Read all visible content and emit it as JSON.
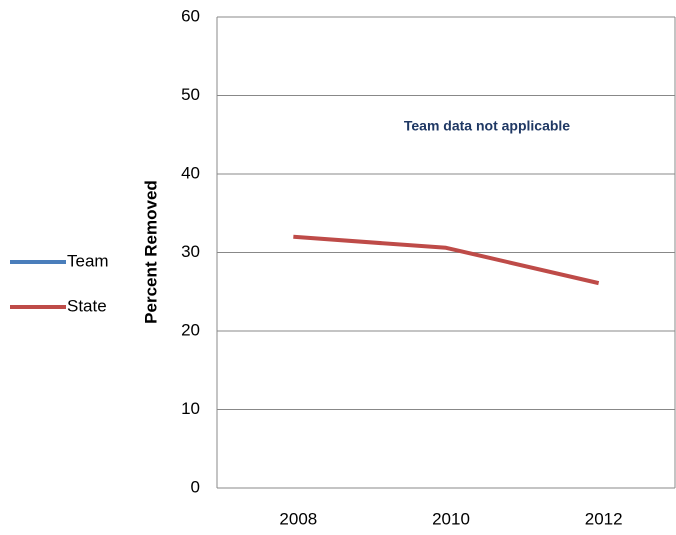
{
  "chart_data": {
    "type": "line",
    "categories": [
      "2008",
      "2010",
      "2012"
    ],
    "series": [
      {
        "name": "Team",
        "color": "#4a7ebb",
        "values": [
          null,
          null,
          null
        ]
      },
      {
        "name": "State",
        "color": "#be4b48",
        "values": [
          32.0,
          30.6,
          26.1
        ]
      }
    ],
    "ylabel": "Percent Removed",
    "annotation": "Team data not applicable",
    "ylim": [
      0,
      60
    ],
    "yticks": [
      0,
      10,
      20,
      30,
      40,
      50,
      60
    ],
    "grid": true,
    "legend": "left"
  }
}
